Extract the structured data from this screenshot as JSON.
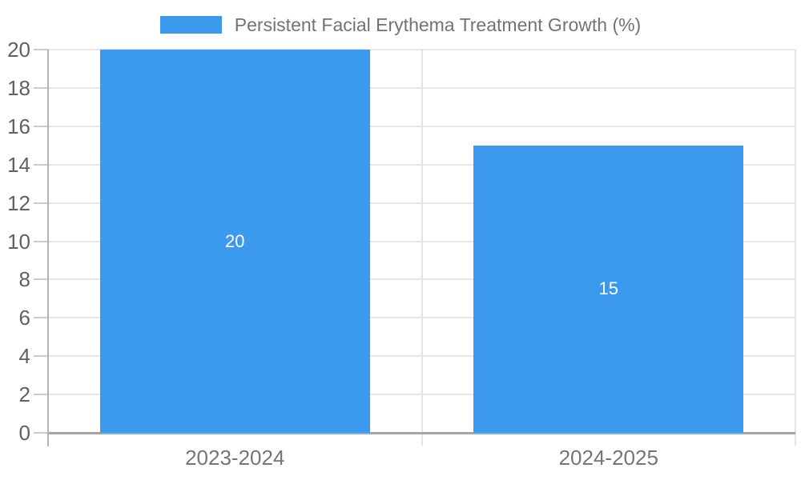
{
  "chart_data": {
    "type": "bar",
    "title": "Persistent Facial Erythema Treatment Growth (%)",
    "categories": [
      "2023-2024",
      "2024-2025"
    ],
    "values": [
      20,
      15
    ],
    "ylim": [
      0,
      20
    ],
    "ytick_step": 2,
    "ytick_labels": [
      "0",
      "2",
      "4",
      "6",
      "8",
      "10",
      "12",
      "14",
      "16",
      "18",
      "20"
    ],
    "grid": true,
    "legend_position": "top",
    "bar_labels": [
      "20",
      "15"
    ],
    "colors": {
      "bar": "#3B9AED",
      "bar_value_text": "#FFFFFF",
      "gridline": "#E6E6E6",
      "category_boundary": "#E3E3E3",
      "y_axis_line": "#B3B3B3",
      "baseline": "#A6A6A6",
      "tick_mark": "#CCCCCC",
      "y_tick_text": "#616161",
      "x_tick_text": "#757575",
      "legend_text": "#737373",
      "background": "#FFFFFF"
    }
  }
}
